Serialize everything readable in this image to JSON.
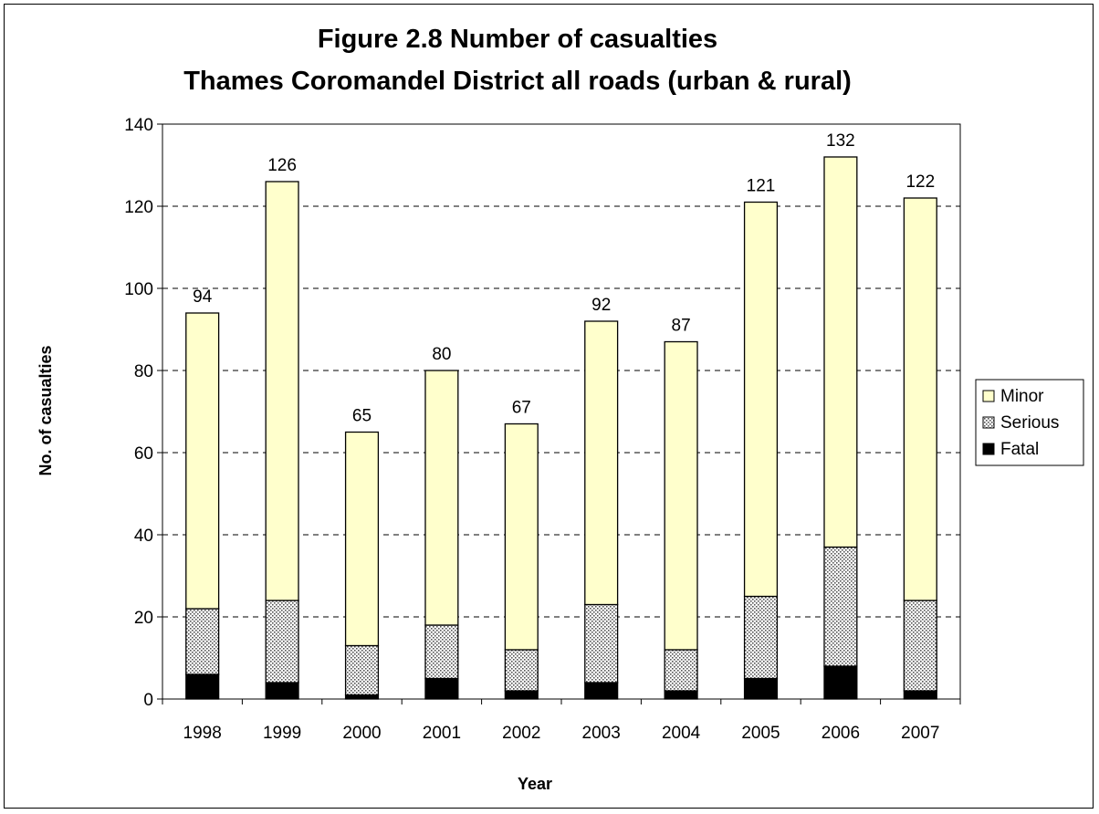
{
  "chart_data": {
    "type": "bar",
    "stacked": true,
    "title_lines": [
      "Figure 2.8 Number of casualties",
      "Thames Coromandel District all roads (urban & rural)"
    ],
    "xlabel": "Year",
    "ylabel": "No. of casualties",
    "ylim": [
      0,
      140
    ],
    "y_ticks": [
      0,
      20,
      40,
      60,
      80,
      100,
      120,
      140
    ],
    "grid": "dashed horizontal",
    "legend_position": "right",
    "categories": [
      "1998",
      "1999",
      "2000",
      "2001",
      "2002",
      "2003",
      "2004",
      "2005",
      "2006",
      "2007"
    ],
    "series": [
      {
        "name": "Fatal",
        "color": "#000000",
        "pattern": "solid",
        "values": [
          6,
          4,
          1,
          5,
          2,
          4,
          2,
          5,
          8,
          2
        ]
      },
      {
        "name": "Serious",
        "color": "#b0b0b0",
        "pattern": "dotted",
        "values": [
          16,
          20,
          12,
          13,
          10,
          19,
          10,
          20,
          29,
          22
        ]
      },
      {
        "name": "Minor",
        "color": "#ffffcc",
        "pattern": "solid",
        "values": [
          72,
          102,
          52,
          62,
          55,
          69,
          75,
          96,
          95,
          98
        ]
      }
    ],
    "totals": [
      94,
      126,
      65,
      80,
      67,
      92,
      87,
      121,
      132,
      122
    ],
    "legend_order": [
      "Minor",
      "Serious",
      "Fatal"
    ]
  }
}
